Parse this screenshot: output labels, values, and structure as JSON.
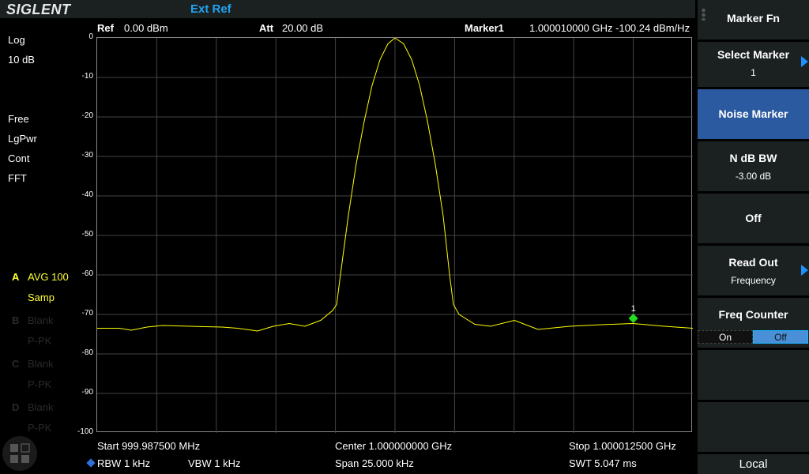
{
  "header": {
    "brand": "SIGLENT",
    "status": "Ext Ref",
    "ref": "Ref",
    "ref_value": "0.00 dBm",
    "att": "Att",
    "att_value": "20.00 dB",
    "marker_label": "Marker1",
    "marker_readout": "1.000010000 GHz -100.24 dBm/Hz"
  },
  "left_panel": {
    "scale_type": "Log",
    "scale_div": "10 dB",
    "trig": "Free",
    "detector_avg": "LgPwr",
    "sweep": "Cont",
    "mode": "FFT",
    "traces": [
      {
        "id": "A",
        "label": "AVG 100",
        "detector": "Samp",
        "active": true
      },
      {
        "id": "B",
        "label": "Blank",
        "detector": "P-PK",
        "active": false
      },
      {
        "id": "C",
        "label": "Blank",
        "detector": "P-PK",
        "active": false
      },
      {
        "id": "D",
        "label": "Blank",
        "detector": "P-PK",
        "active": false
      }
    ]
  },
  "footer": {
    "start": "Start  999.987500 MHz",
    "center": "Center  1.000000000 GHz",
    "stop": "Stop  1.000012500 GHz",
    "rbw": "RBW  1 kHz",
    "vbw": "VBW  1 kHz",
    "span": "Span    25.000 kHz",
    "swt": "SWT  5.047 ms"
  },
  "softkeys": {
    "title": "Marker Fn",
    "select_marker": "Select Marker",
    "select_marker_value": "1",
    "noise_marker": "Noise Marker",
    "ndb_bw": "N dB BW",
    "ndb_bw_value": "-3.00 dB",
    "off": "Off",
    "read_out": "Read Out",
    "read_out_value": "Frequency",
    "freq_counter": "Freq Counter",
    "fc_on": "On",
    "fc_off": "Off",
    "local": "Local"
  },
  "colors": {
    "trace": "#ffff00",
    "marker": "#22dd22",
    "selected_key": "#2c5aa0",
    "accent": "#22a3f0"
  },
  "chart_data": {
    "type": "line",
    "xlabel": "",
    "ylabel": "",
    "xlim": [
      999.9875,
      1000.0125
    ],
    "x_unit": "MHz",
    "ylim": [
      -100,
      0
    ],
    "y_unit": "dBm",
    "yticks": [
      "0",
      "-10",
      "-20",
      "-30",
      "-40",
      "-50",
      "-60",
      "-70",
      "-80",
      "-90",
      "-100"
    ],
    "grid": true,
    "x": [
      999.9875,
      999.98843,
      999.98893,
      999.98959,
      999.99025,
      999.99141,
      999.99274,
      999.9934,
      999.99423,
      999.99489,
      999.99556,
      999.99622,
      999.99688,
      999.99738,
      999.99755,
      999.99771,
      999.99804,
      999.99837,
      999.99871,
      999.99904,
      999.99937,
      999.9997,
      1000.0,
      1000.00036,
      1000.0007,
      1000.00103,
      1000.00136,
      1000.00169,
      1000.00202,
      1000.00229,
      1000.00245,
      1000.00269,
      1000.00335,
      1000.00401,
      1000.00501,
      1000.006,
      1000.00733,
      1000.00865,
      1000.00998,
      1000.01131,
      1000.0125
    ],
    "series": [
      {
        "values": [
          -73.5,
          -73.5,
          -74,
          -73.2,
          -72.8,
          -73,
          -73.2,
          -73.5,
          -74.2,
          -73,
          -72.3,
          -73,
          -71.5,
          -69,
          -67.5,
          -60,
          -45,
          -32,
          -21,
          -12,
          -5.5,
          -1.5,
          0,
          -1.5,
          -5.5,
          -12,
          -21,
          -32,
          -45,
          -60,
          -67.5,
          -70,
          -72.5,
          -73,
          -71.5,
          -73.8,
          -73,
          -72.6,
          -72.3,
          -73,
          -73.5
        ]
      }
    ],
    "markers": [
      {
        "label": "1",
        "x": 1000.01,
        "y": -71
      }
    ]
  }
}
